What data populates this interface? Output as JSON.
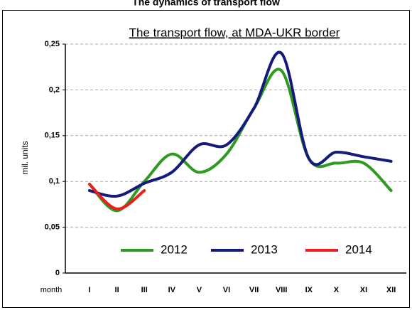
{
  "chart_data": {
    "type": "line",
    "title": "The dynamics of transport flow",
    "subtitle": "The transport flow, at MDA-UKR border",
    "y_label": "mil. units",
    "x_label": "month",
    "categories": [
      "I",
      "II",
      "III",
      "IV",
      "V",
      "VI",
      "VII",
      "VIII",
      "IX",
      "X",
      "XI",
      "XII"
    ],
    "series": [
      {
        "name": "2012",
        "color": "#2e9a1f",
        "values": [
          0.097,
          0.068,
          0.1,
          0.13,
          0.11,
          0.13,
          0.18,
          0.221,
          0.125,
          0.12,
          0.12,
          0.09
        ]
      },
      {
        "name": "2013",
        "color": "#141b7a",
        "values": [
          0.09,
          0.084,
          0.098,
          0.11,
          0.14,
          0.14,
          0.18,
          0.24,
          0.125,
          0.132,
          0.127,
          0.122
        ]
      },
      {
        "name": "2014",
        "color": "#ee1c1c",
        "values": [
          0.097,
          0.07,
          0.09,
          null,
          null,
          null,
          null,
          null,
          null,
          null,
          null,
          null
        ]
      }
    ],
    "ylim": [
      0,
      0.25
    ],
    "yticks": [
      0,
      {
        "value": 0.05,
        "label": "0,05"
      },
      {
        "value": 0.1,
        "label": "0,1"
      },
      {
        "value": 0.15,
        "label": "0,15"
      },
      {
        "value": 0.2,
        "label": "0,2"
      },
      {
        "value": 0.25,
        "label": "0,25"
      }
    ],
    "grid": true,
    "legend": "bottom"
  }
}
